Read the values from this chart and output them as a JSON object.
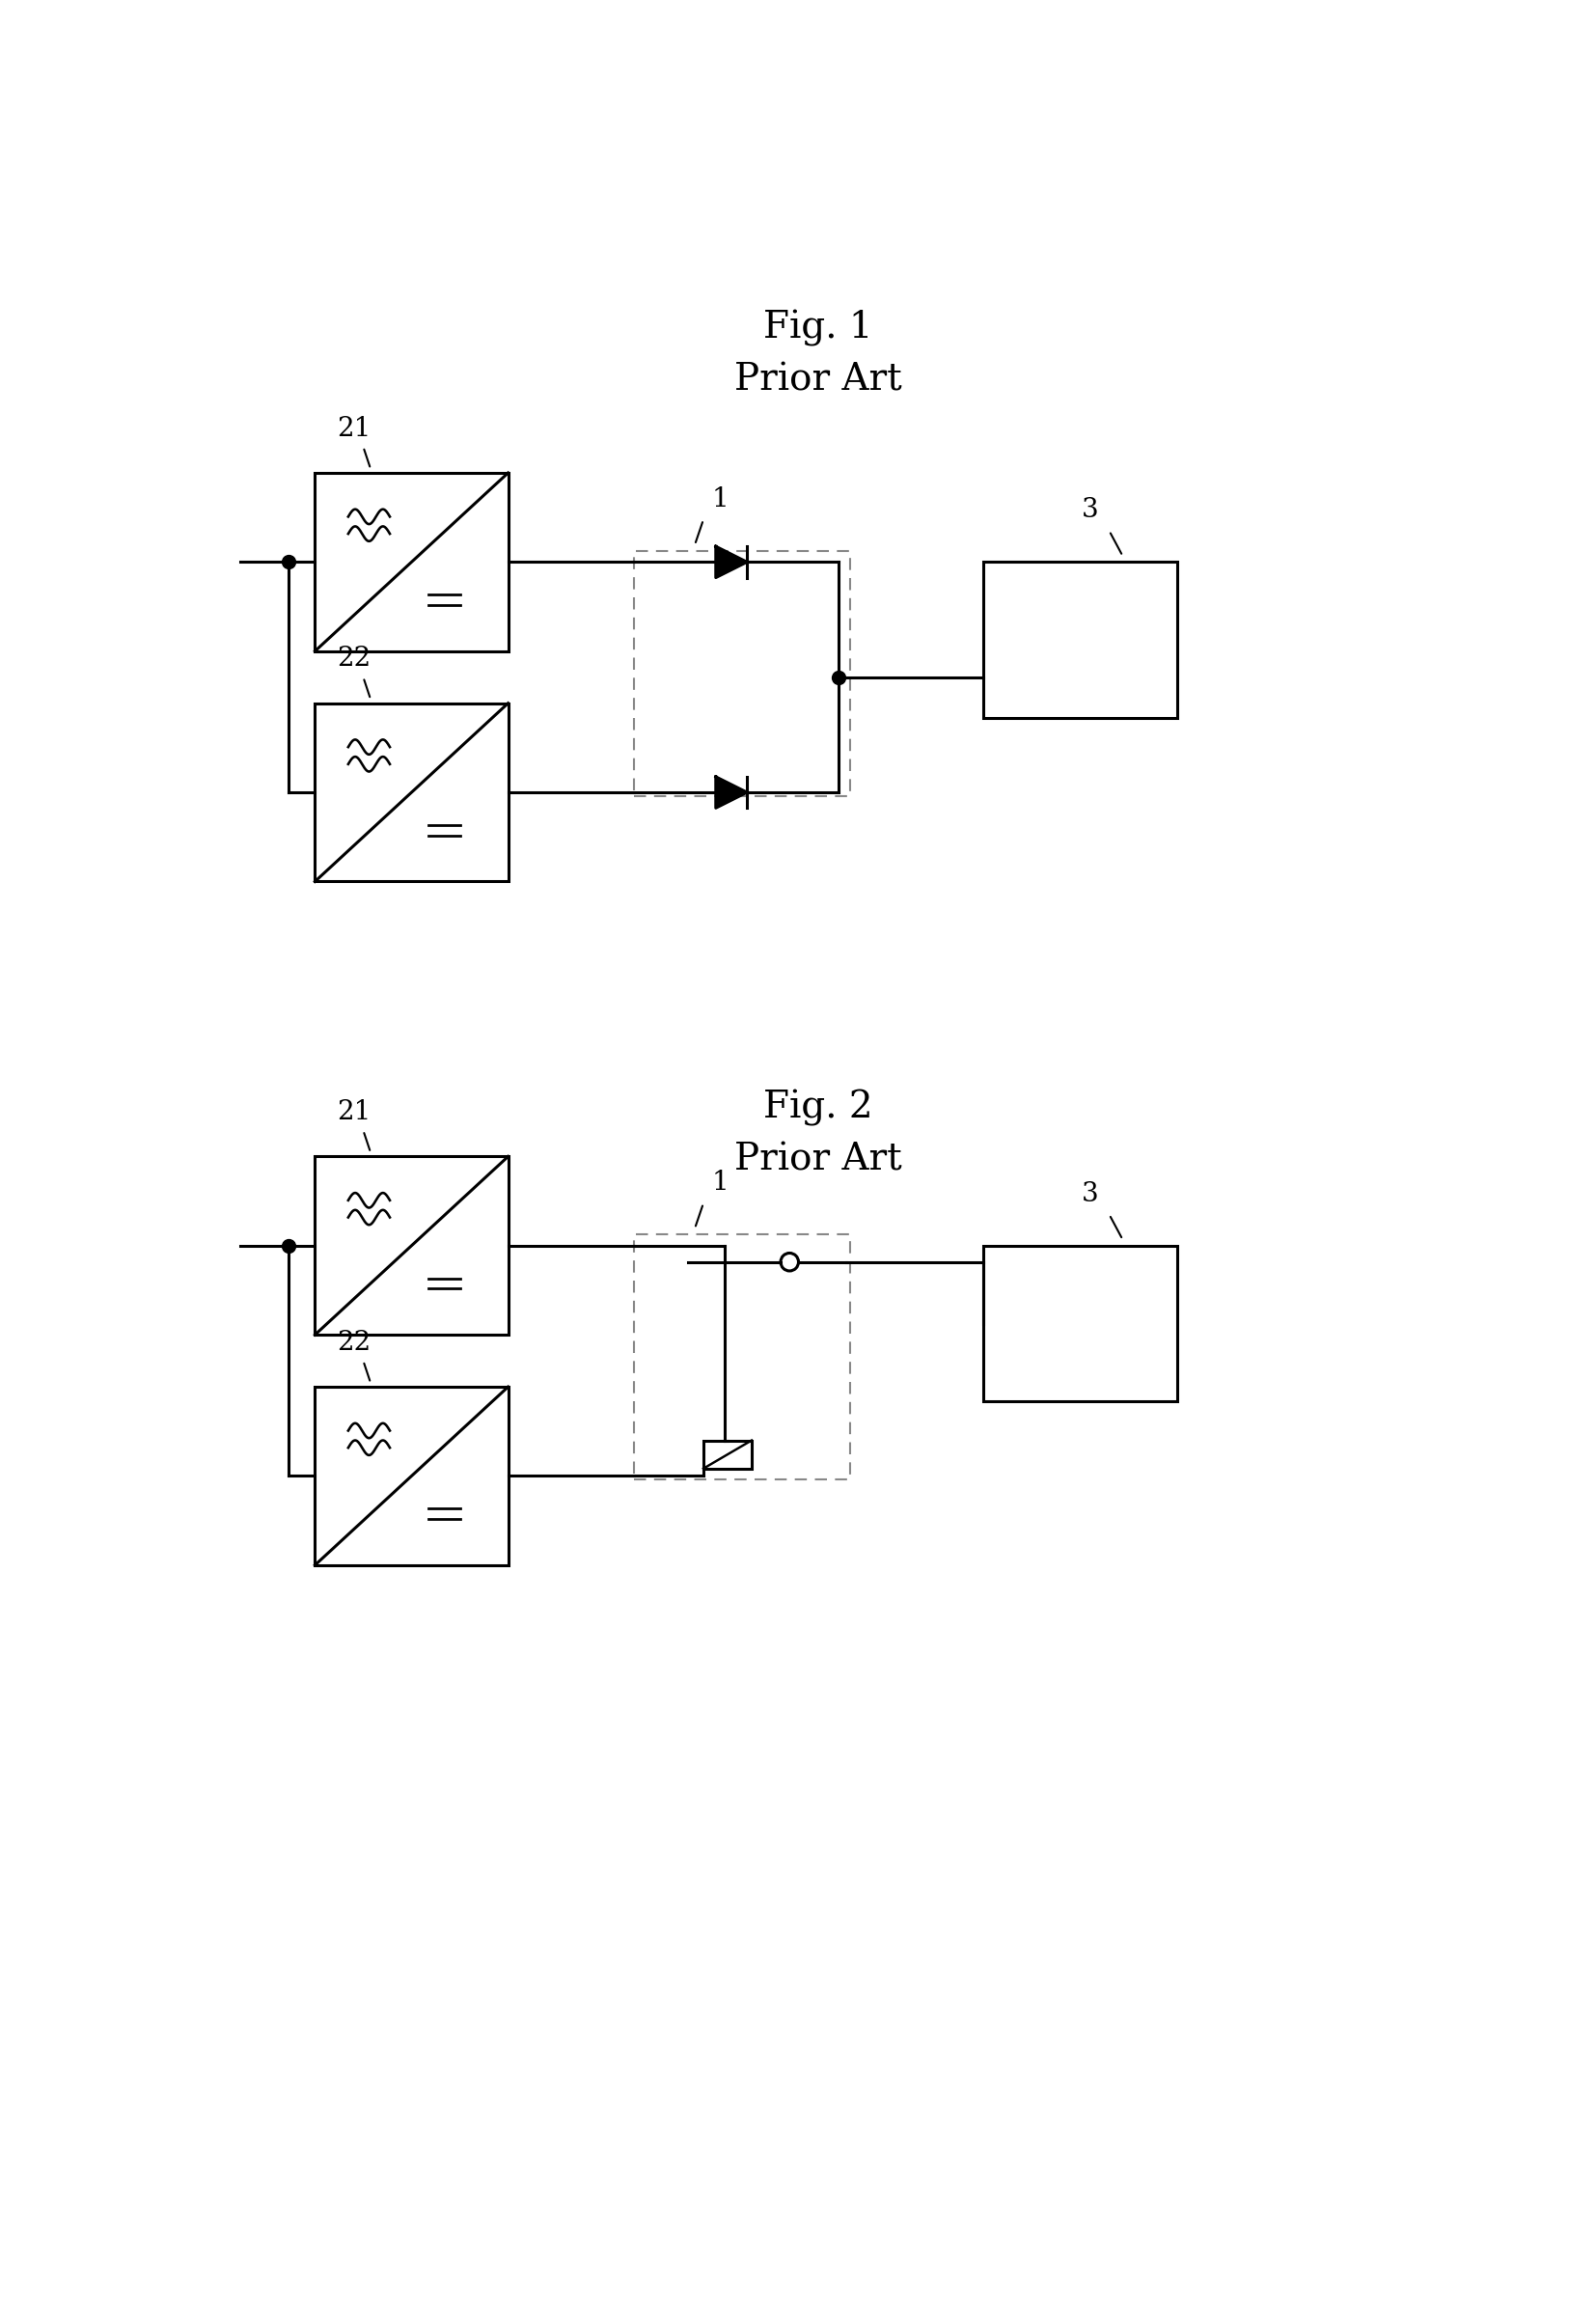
{
  "fig1_title": "Fig. 1",
  "fig2_title": "Fig. 2",
  "prior_art": "Prior Art",
  "label_21": "21",
  "label_22": "22",
  "label_1": "1",
  "label_3": "3",
  "bg_color": "#ffffff",
  "line_color": "#000000"
}
